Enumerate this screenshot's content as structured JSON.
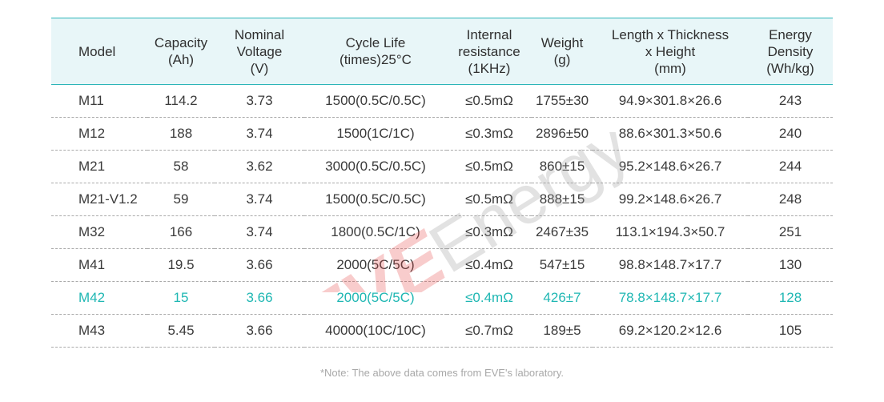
{
  "table": {
    "headers": [
      "Model",
      "Capacity\n(Ah)",
      "Nominal\nVoltage\n(V)",
      "Cycle Life\n(times)25°C",
      "Internal\nresistance\n(1KHz)",
      "Weight\n(g)",
      "Length x Thickness\nx Height\n(mm)",
      "Energy\nDensity\n(Wh/kg)"
    ],
    "rows": [
      [
        "M11",
        "114.2",
        "3.73",
        "1500(0.5C/0.5C)",
        "≤0.5mΩ",
        "1755±30",
        "94.9×301.8×26.6",
        "243"
      ],
      [
        "M12",
        "188",
        "3.74",
        "1500(1C/1C)",
        "≤0.3mΩ",
        "2896±50",
        "88.6×301.3×50.6",
        "240"
      ],
      [
        "M21",
        "58",
        "3.62",
        "3000(0.5C/0.5C)",
        "≤0.5mΩ",
        "860±15",
        "95.2×148.6×26.7",
        "244"
      ],
      [
        "M21-V1.2",
        "59",
        "3.74",
        "1500(0.5C/0.5C)",
        "≤0.5mΩ",
        "888±15",
        "99.2×148.6×26.7",
        "248"
      ],
      [
        "M32",
        "166",
        "3.74",
        "1800(0.5C/1C)",
        "≤0.3mΩ",
        "2467±35",
        "113.1×194.3×50.7",
        "251"
      ],
      [
        "M41",
        "19.5",
        "3.66",
        "2000(5C/5C)",
        "≤0.4mΩ",
        "547±15",
        "98.8×148.7×17.7",
        "130"
      ],
      [
        "M42",
        "15",
        "3.66",
        "2000(5C/5C)",
        "≤0.4mΩ",
        "426±7",
        "78.8×148.7×17.7",
        "128"
      ],
      [
        "M43",
        "5.45",
        "3.66",
        "40000(10C/10C)",
        "≤0.7mΩ",
        "189±5",
        "69.2×120.2×12.6",
        "105"
      ]
    ],
    "highlighted_row": "M42"
  },
  "watermark": {
    "brand": "EVE",
    "word": "Energy"
  },
  "note": "*Note: The above data comes from EVE's laboratory.",
  "colors": {
    "accent": "#2cb5b8",
    "header_bg": "#e8f6f8",
    "highlight_text": "#1fb7b3",
    "watermark_red": "#e84a4a",
    "watermark_gray": "#bdbdbd"
  }
}
